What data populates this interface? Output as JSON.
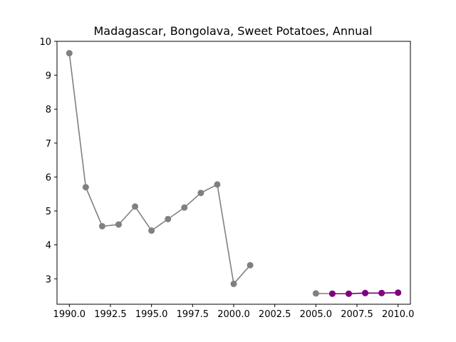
{
  "chart_data": {
    "type": "line",
    "title": "Madagascar, Bongolava, Sweet Potatoes, Annual",
    "xlabel": "",
    "ylabel": "",
    "xlim": [
      1989.25,
      2010.75
    ],
    "ylim": [
      2.25,
      10.0
    ],
    "xticks": [
      1990.0,
      1992.5,
      1995.0,
      1997.5,
      2000.0,
      2002.5,
      2005.0,
      2007.5,
      2010.0
    ],
    "xtick_labels": [
      "1990.0",
      "1992.5",
      "1995.0",
      "1997.5",
      "2000.0",
      "2002.5",
      "2005.0",
      "2007.5",
      "2010.0"
    ],
    "yticks": [
      3,
      4,
      5,
      6,
      7,
      8,
      9,
      10
    ],
    "ytick_labels": [
      "3",
      "4",
      "5",
      "6",
      "7",
      "8",
      "9",
      "10"
    ],
    "grid": false,
    "series": [
      {
        "color": "#808080",
        "segments": [
          {
            "x": [
              1990,
              1991,
              1992,
              1993,
              1994,
              1995,
              1996,
              1997,
              1998,
              1999,
              2000,
              2001
            ],
            "y": [
              9.65,
              5.7,
              4.55,
              4.6,
              5.13,
              4.42,
              4.76,
              5.1,
              5.53,
              5.78,
              2.85,
              3.4
            ]
          },
          {
            "x": [
              2005,
              2006,
              2007,
              2008,
              2009,
              2010
            ],
            "y": [
              2.57,
              2.56,
              2.56,
              2.58,
              2.58,
              2.59
            ]
          }
        ]
      },
      {
        "color": "#800080",
        "segments": [
          {
            "x": [
              2006,
              2007,
              2008,
              2009,
              2010
            ],
            "y": [
              2.56,
              2.56,
              2.58,
              2.58,
              2.59
            ]
          }
        ]
      }
    ]
  }
}
